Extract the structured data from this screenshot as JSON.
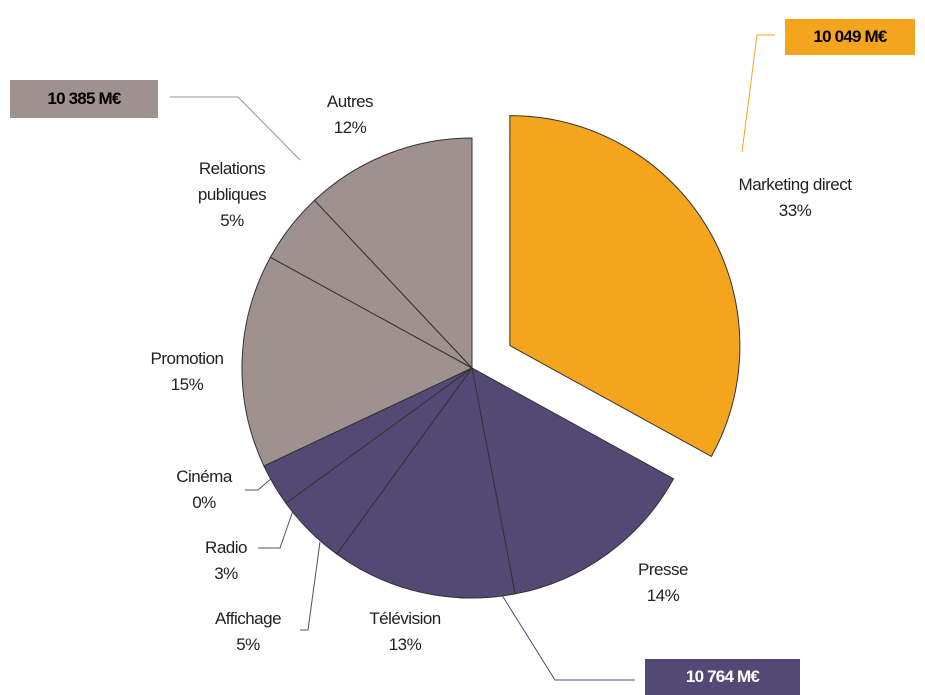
{
  "chart_data": {
    "type": "pie",
    "categories": [
      "Marketing direct",
      "Presse",
      "Télévision",
      "Affichage",
      "Radio",
      "Cinéma",
      "Promotion",
      "Relations publiques",
      "Autres"
    ],
    "values": [
      33,
      14,
      13,
      5,
      3,
      0,
      15,
      5,
      12
    ],
    "value_labels": [
      "33%",
      "14%",
      "13%",
      "5%",
      "3%",
      "0%",
      "15%",
      "5%",
      "12%"
    ],
    "colors": [
      "#f5a51d",
      "#524a74",
      "#524a74",
      "#524a74",
      "#524a74",
      "#524a74",
      "#9f928e",
      "#9f928e",
      "#9f928e"
    ],
    "exploded": [
      true,
      false,
      false,
      false,
      false,
      false,
      false,
      false,
      false
    ],
    "annotations": [
      {
        "text": "10 049 M€",
        "color": "#f5a51d"
      },
      {
        "text": "10 764 M€",
        "color": "#524a74"
      },
      {
        "text": "10 385 M€",
        "color": "#9f928e"
      }
    ]
  }
}
